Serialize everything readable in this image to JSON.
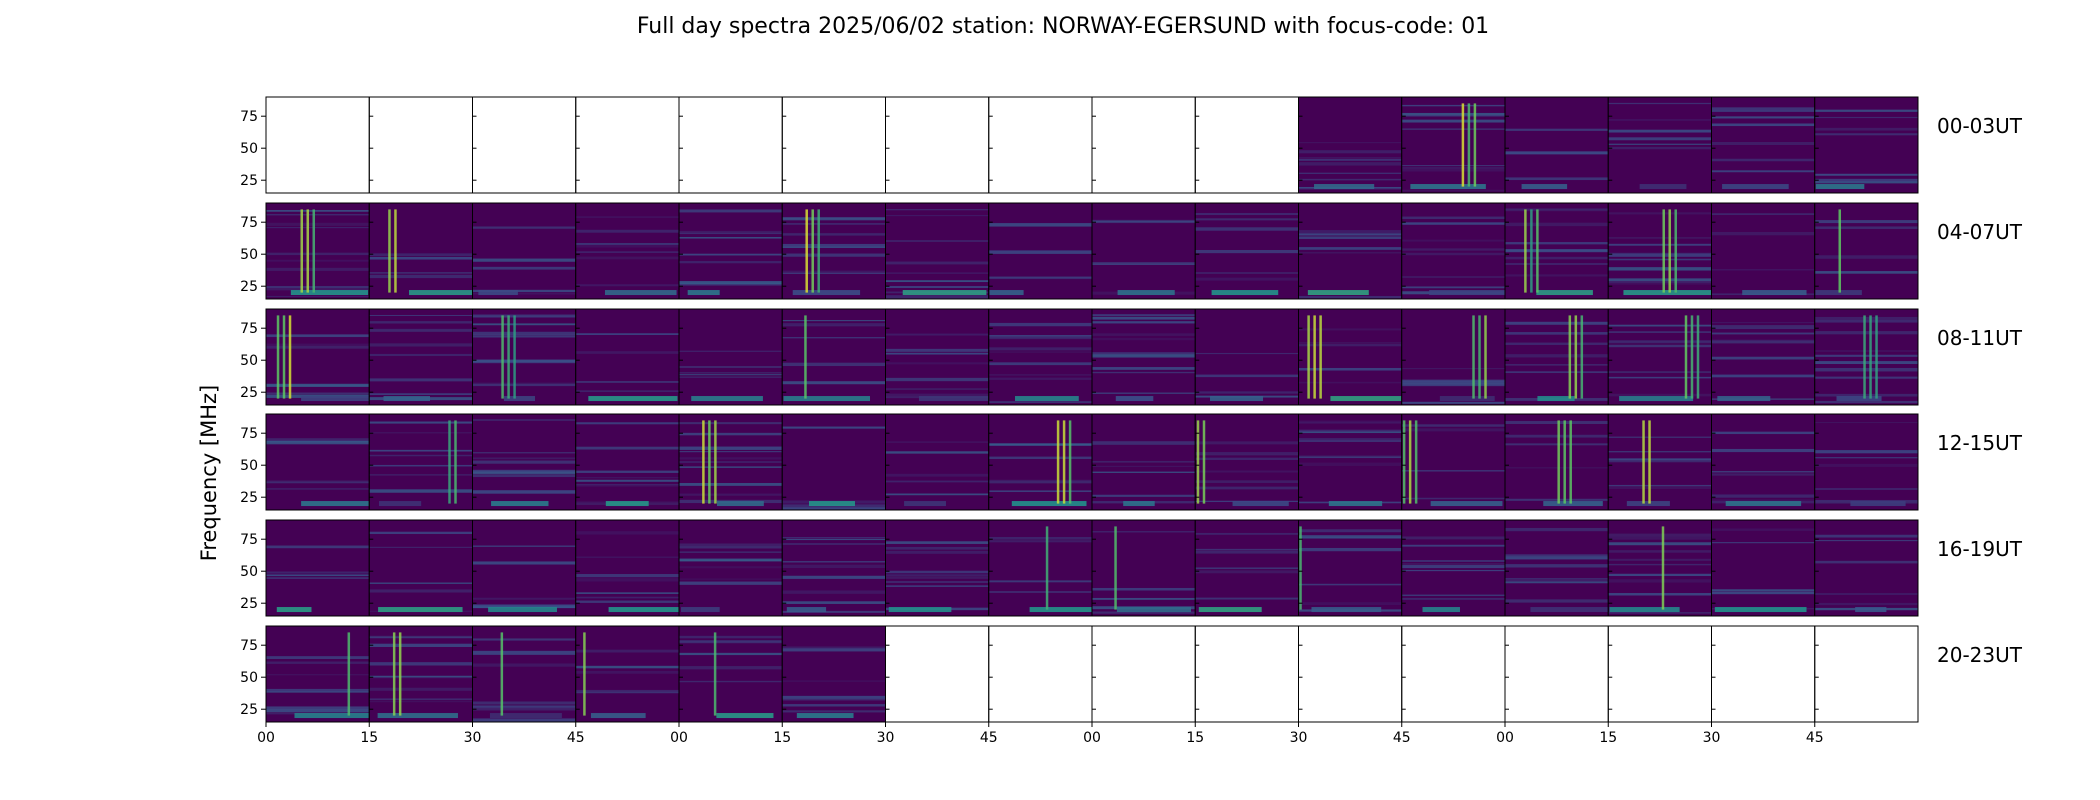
{
  "figure": {
    "title": "Full day spectra 2025/06/02 station: NORWAY-EGERSUND with focus-code: 01",
    "ylabel": "Frequency [MHz]"
  },
  "chart_data": {
    "type": "heatmap",
    "title": "Full day spectra 2025/06/02 station: NORWAY-EGERSUND with focus-code: 01",
    "ylabel": "Frequency [MHz]",
    "xlabel": "",
    "ylim": [
      15,
      90
    ],
    "yticks": [
      25,
      50,
      75
    ],
    "xticks": [
      "00",
      "15",
      "30",
      "45",
      "00",
      "15",
      "30",
      "45",
      "00",
      "15",
      "30",
      "45",
      "00",
      "15",
      "30",
      "45"
    ],
    "colormap": "viridis",
    "colors": {
      "low": "#440154",
      "mid": "#21918c",
      "high": "#fde725"
    },
    "rows": [
      {
        "label": "00-03UT",
        "data_from_panel": 10,
        "data_to_panel": 15
      },
      {
        "label": "04-07UT",
        "data_from_panel": 0,
        "data_to_panel": 15
      },
      {
        "label": "08-11UT",
        "data_from_panel": 0,
        "data_to_panel": 15
      },
      {
        "label": "12-15UT",
        "data_from_panel": 0,
        "data_to_panel": 15
      },
      {
        "label": "16-19UT",
        "data_from_panel": 0,
        "data_to_panel": 15
      },
      {
        "label": "20-23UT",
        "data_from_panel": 0,
        "data_to_panel": 5
      }
    ]
  }
}
